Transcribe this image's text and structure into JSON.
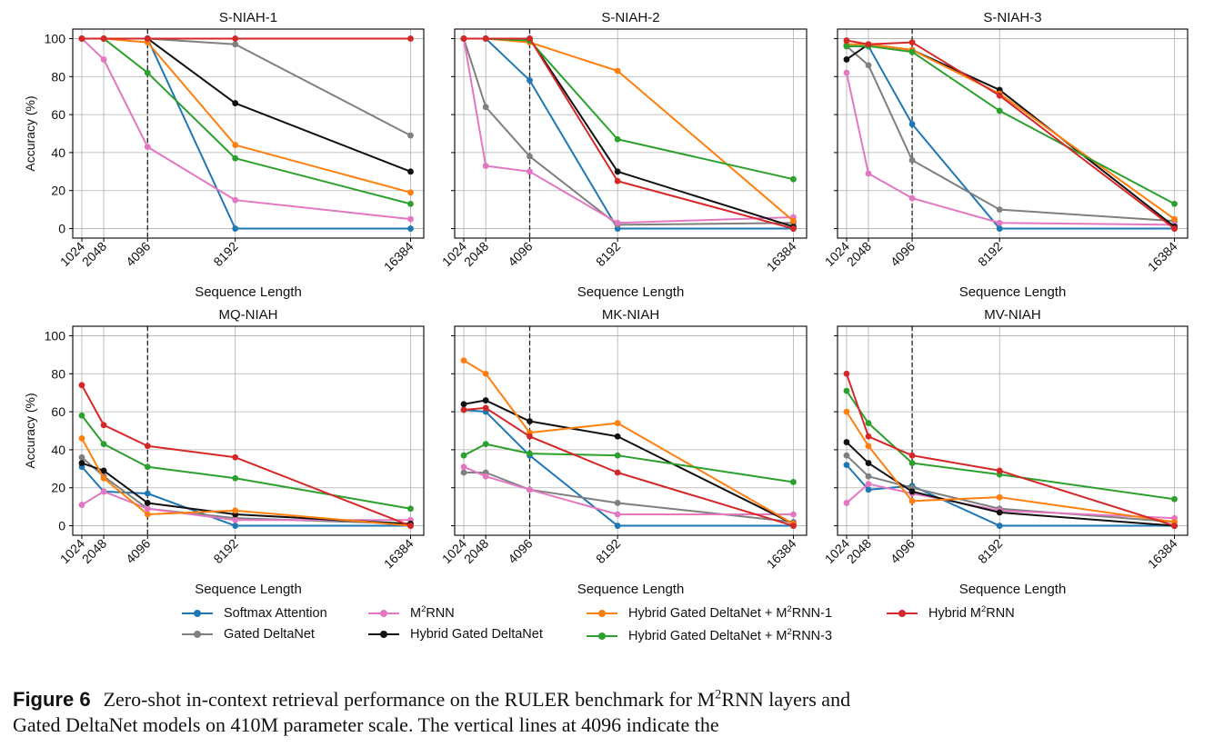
{
  "chart_data": [
    {
      "type": "line",
      "title": "S-NIAH-1",
      "xlabel": "Sequence Length",
      "ylabel": "Accuracy (%)",
      "x": [
        1024,
        2048,
        4096,
        8192,
        16384
      ],
      "xticks": [
        "1024",
        "2048",
        "4096",
        "8192",
        "16384"
      ],
      "yticks": [
        "0",
        "20",
        "40",
        "60",
        "80",
        "100"
      ],
      "ylim": [
        -5,
        105
      ],
      "grid": true,
      "vline": 4096,
      "series": [
        {
          "name": "Softmax Attention",
          "values": [
            100,
            100,
            100,
            0,
            0
          ]
        },
        {
          "name": "Gated DeltaNet",
          "values": [
            100,
            100,
            100,
            97,
            49
          ]
        },
        {
          "name": "M2RNN",
          "values": [
            100,
            89,
            43,
            15,
            5
          ]
        },
        {
          "name": "Hybrid Gated DeltaNet",
          "values": [
            100,
            100,
            100,
            66,
            30
          ]
        },
        {
          "name": "Hybrid Gated DeltaNet + M2RNN-1",
          "values": [
            100,
            100,
            98,
            44,
            19
          ]
        },
        {
          "name": "Hybrid Gated DeltaNet + M2RNN-3",
          "values": [
            100,
            100,
            82,
            37,
            13
          ]
        },
        {
          "name": "Hybrid M2RNN",
          "values": [
            100,
            100,
            100,
            100,
            100
          ]
        }
      ]
    },
    {
      "type": "line",
      "title": "S-NIAH-2",
      "xlabel": "Sequence Length",
      "ylabel": "",
      "x": [
        1024,
        2048,
        4096,
        8192,
        16384
      ],
      "xticks": [
        "1024",
        "2048",
        "4096",
        "8192",
        "16384"
      ],
      "yticks": [],
      "ylim": [
        -5,
        105
      ],
      "grid": true,
      "vline": 4096,
      "series": [
        {
          "name": "Softmax Attention",
          "values": [
            100,
            100,
            78,
            0,
            0
          ]
        },
        {
          "name": "Gated DeltaNet",
          "values": [
            100,
            64,
            38,
            2,
            3
          ]
        },
        {
          "name": "M2RNN",
          "values": [
            100,
            33,
            30,
            3,
            6
          ]
        },
        {
          "name": "Hybrid Gated DeltaNet",
          "values": [
            100,
            100,
            100,
            30,
            1
          ]
        },
        {
          "name": "Hybrid Gated DeltaNet + M2RNN-1",
          "values": [
            100,
            100,
            98,
            83,
            4
          ]
        },
        {
          "name": "Hybrid Gated DeltaNet + M2RNN-3",
          "values": [
            100,
            100,
            99,
            47,
            26
          ]
        },
        {
          "name": "Hybrid M2RNN",
          "values": [
            100,
            100,
            100,
            25,
            0
          ]
        }
      ]
    },
    {
      "type": "line",
      "title": "S-NIAH-3",
      "xlabel": "Sequence Length",
      "ylabel": "",
      "x": [
        1024,
        2048,
        4096,
        8192,
        16384
      ],
      "xticks": [
        "1024",
        "2048",
        "4096",
        "8192",
        "16384"
      ],
      "yticks": [],
      "ylim": [
        -5,
        105
      ],
      "grid": true,
      "vline": 4096,
      "series": [
        {
          "name": "Softmax Attention",
          "values": [
            96,
            96,
            55,
            0,
            0
          ]
        },
        {
          "name": "Gated DeltaNet",
          "values": [
            96,
            86,
            36,
            10,
            4
          ]
        },
        {
          "name": "M2RNN",
          "values": [
            82,
            29,
            16,
            3,
            2
          ]
        },
        {
          "name": "Hybrid Gated DeltaNet",
          "values": [
            89,
            97,
            94,
            73,
            1
          ]
        },
        {
          "name": "Hybrid Gated DeltaNet + M2RNN-1",
          "values": [
            97,
            97,
            94,
            71,
            5
          ]
        },
        {
          "name": "Hybrid Gated DeltaNet + M2RNN-3",
          "values": [
            96,
            96,
            93,
            62,
            13
          ]
        },
        {
          "name": "Hybrid M2RNN",
          "values": [
            99,
            97,
            98,
            70,
            0
          ]
        }
      ]
    },
    {
      "type": "line",
      "title": "MQ-NIAH",
      "xlabel": "Sequence Length",
      "ylabel": "Accuracy (%)",
      "x": [
        1024,
        2048,
        4096,
        8192,
        16384
      ],
      "xticks": [
        "1024",
        "2048",
        "4096",
        "8192",
        "16384"
      ],
      "yticks": [
        "0",
        "20",
        "40",
        "60",
        "80",
        "100"
      ],
      "ylim": [
        -5,
        105
      ],
      "grid": true,
      "vline": 4096,
      "series": [
        {
          "name": "Softmax Attention",
          "values": [
            31,
            18,
            17,
            0,
            0
          ]
        },
        {
          "name": "Gated DeltaNet",
          "values": [
            36,
            26,
            9,
            4,
            1
          ]
        },
        {
          "name": "M2RNN",
          "values": [
            11,
            18,
            9,
            3,
            3
          ]
        },
        {
          "name": "Hybrid Gated DeltaNet",
          "values": [
            33,
            29,
            12,
            6,
            1
          ]
        },
        {
          "name": "Hybrid Gated DeltaNet + M2RNN-1",
          "values": [
            46,
            25,
            6,
            8,
            0
          ]
        },
        {
          "name": "Hybrid Gated DeltaNet + M2RNN-3",
          "values": [
            58,
            43,
            31,
            25,
            9
          ]
        },
        {
          "name": "Hybrid M2RNN",
          "values": [
            74,
            53,
            42,
            36,
            0
          ]
        }
      ]
    },
    {
      "type": "line",
      "title": "MK-NIAH",
      "xlabel": "Sequence Length",
      "ylabel": "",
      "x": [
        1024,
        2048,
        4096,
        8192,
        16384
      ],
      "xticks": [
        "1024",
        "2048",
        "4096",
        "8192",
        "16384"
      ],
      "yticks": [],
      "ylim": [
        -5,
        105
      ],
      "grid": true,
      "vline": 4096,
      "series": [
        {
          "name": "Softmax Attention",
          "values": [
            61,
            60,
            37,
            0,
            0
          ]
        },
        {
          "name": "Gated DeltaNet",
          "values": [
            28,
            28,
            19,
            12,
            2
          ]
        },
        {
          "name": "M2RNN",
          "values": [
            31,
            26,
            19,
            6,
            6
          ]
        },
        {
          "name": "Hybrid Gated DeltaNet",
          "values": [
            64,
            66,
            55,
            47,
            1
          ]
        },
        {
          "name": "Hybrid Gated DeltaNet + M2RNN-1",
          "values": [
            87,
            80,
            49,
            54,
            1
          ]
        },
        {
          "name": "Hybrid Gated DeltaNet + M2RNN-3",
          "values": [
            37,
            43,
            38,
            37,
            23
          ]
        },
        {
          "name": "Hybrid M2RNN",
          "values": [
            61,
            62,
            47,
            28,
            0
          ]
        }
      ]
    },
    {
      "type": "line",
      "title": "MV-NIAH",
      "xlabel": "Sequence Length",
      "ylabel": "",
      "x": [
        1024,
        2048,
        4096,
        8192,
        16384
      ],
      "xticks": [
        "1024",
        "2048",
        "4096",
        "8192",
        "16384"
      ],
      "yticks": [],
      "ylim": [
        -5,
        105
      ],
      "grid": true,
      "vline": 4096,
      "series": [
        {
          "name": "Softmax Attention",
          "values": [
            32,
            19,
            21,
            0,
            0
          ]
        },
        {
          "name": "Gated DeltaNet",
          "values": [
            37,
            26,
            20,
            9,
            2
          ]
        },
        {
          "name": "M2RNN",
          "values": [
            12,
            22,
            17,
            8,
            4
          ]
        },
        {
          "name": "Hybrid Gated DeltaNet",
          "values": [
            44,
            33,
            18,
            7,
            0
          ]
        },
        {
          "name": "Hybrid Gated DeltaNet + M2RNN-1",
          "values": [
            60,
            42,
            13,
            15,
            2
          ]
        },
        {
          "name": "Hybrid Gated DeltaNet + M2RNN-3",
          "values": [
            71,
            54,
            33,
            27,
            14
          ]
        },
        {
          "name": "Hybrid M2RNN",
          "values": [
            80,
            47,
            37,
            29,
            0
          ]
        }
      ]
    }
  ],
  "series_colors": {
    "Softmax Attention": "#1f77b4",
    "Gated DeltaNet": "#7f7f7f",
    "M2RNN": "#e377c2",
    "Hybrid Gated DeltaNet": "#111111",
    "Hybrid Gated DeltaNet + M2RNN-1": "#ff7f0e",
    "Hybrid Gated DeltaNet + M2RNN-3": "#2ca02c",
    "Hybrid M2RNN": "#d62728"
  },
  "legend": {
    "position": "bottom-center",
    "items": [
      {
        "series": "Softmax Attention",
        "pre": "Softmax Attention",
        "sup": "",
        "post": ""
      },
      {
        "series": "Gated DeltaNet",
        "pre": "Gated DeltaNet",
        "sup": "",
        "post": ""
      },
      {
        "series": "M2RNN",
        "pre": "M",
        "sup": "2",
        "post": "RNN"
      },
      {
        "series": "Hybrid Gated DeltaNet",
        "pre": "Hybrid Gated DeltaNet",
        "sup": "",
        "post": ""
      },
      {
        "series": "Hybrid Gated DeltaNet + M2RNN-1",
        "pre": "Hybrid Gated DeltaNet + M",
        "sup": "2",
        "post": "RNN-1"
      },
      {
        "series": "Hybrid Gated DeltaNet + M2RNN-3",
        "pre": "Hybrid Gated DeltaNet + M",
        "sup": "2",
        "post": "RNN-3"
      },
      {
        "series": "Hybrid M2RNN",
        "pre": "Hybrid M",
        "sup": "2",
        "post": "RNN"
      }
    ]
  },
  "caption": {
    "label": "Figure 6",
    "line1_pre": "Zero-shot in-context retrieval performance on the RULER benchmark for M",
    "line1_sup": "2",
    "line1_post": "RNN layers and",
    "line2": "Gated DeltaNet models on 410M parameter scale. The vertical lines at 4096 indicate the"
  }
}
